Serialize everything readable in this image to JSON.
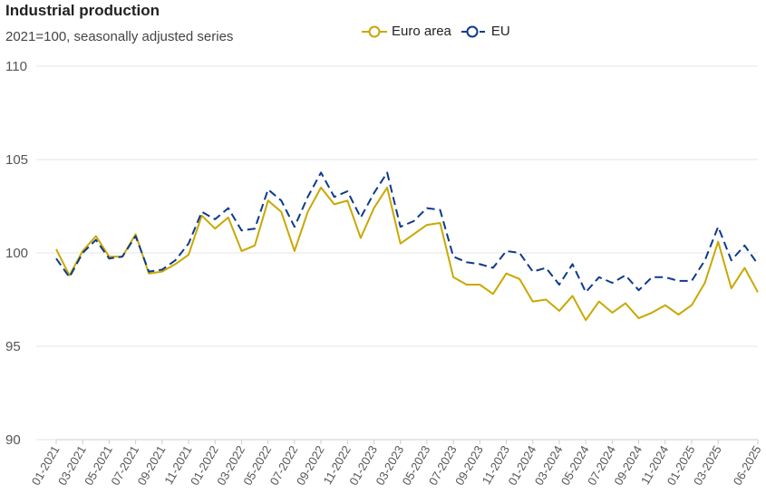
{
  "header": {
    "title": "Industrial production",
    "subtitle": "2021=100, seasonally adjusted series"
  },
  "legend": {
    "items": [
      {
        "label": "Euro area",
        "color": "#c9a800",
        "style": "solid"
      },
      {
        "label": "EU",
        "color": "#0e3a8a",
        "style": "dashed"
      }
    ]
  },
  "chart_data": {
    "type": "line",
    "title": "Industrial production",
    "subtitle": "2021=100, seasonally adjusted series",
    "xlabel": "",
    "ylabel": "",
    "ylim": [
      90,
      110
    ],
    "yticks": [
      90,
      95,
      100,
      105,
      110
    ],
    "grid": true,
    "legend_position": "top",
    "x": [
      "01-2021",
      "02-2021",
      "03-2021",
      "04-2021",
      "05-2021",
      "06-2021",
      "07-2021",
      "08-2021",
      "09-2021",
      "10-2021",
      "11-2021",
      "12-2021",
      "01-2022",
      "02-2022",
      "03-2022",
      "04-2022",
      "05-2022",
      "06-2022",
      "07-2022",
      "08-2022",
      "09-2022",
      "10-2022",
      "11-2022",
      "12-2022",
      "01-2023",
      "02-2023",
      "03-2023",
      "04-2023",
      "05-2023",
      "06-2023",
      "07-2023",
      "08-2023",
      "09-2023",
      "10-2023",
      "11-2023",
      "12-2023",
      "01-2024",
      "02-2024",
      "03-2024",
      "04-2024",
      "05-2024",
      "06-2024",
      "07-2024",
      "08-2024",
      "09-2024",
      "10-2024",
      "11-2024",
      "12-2024",
      "01-2025",
      "02-2025",
      "03-2025",
      "04-2025",
      "05-2025",
      "06-2025"
    ],
    "xtick_labels": [
      "01-2021",
      "03-2021",
      "05-2021",
      "07-2021",
      "09-2021",
      "11-2021",
      "01-2022",
      "03-2022",
      "05-2022",
      "07-2022",
      "09-2022",
      "11-2022",
      "01-2023",
      "03-2023",
      "05-2023",
      "07-2023",
      "09-2023",
      "11-2023",
      "01-2024",
      "03-2024",
      "05-2024",
      "07-2024",
      "09-2024",
      "11-2024",
      "01-2025",
      "03-2025",
      "06-2025"
    ],
    "series": [
      {
        "name": "Euro area",
        "color": "#c9a800",
        "dash": false,
        "values": [
          100.2,
          98.8,
          100.1,
          100.9,
          99.8,
          99.8,
          101.0,
          98.9,
          99.0,
          99.4,
          99.9,
          102.0,
          101.3,
          101.9,
          100.1,
          100.4,
          102.8,
          102.2,
          100.1,
          102.2,
          103.5,
          102.6,
          102.8,
          100.8,
          102.4,
          103.5,
          100.5,
          101.0,
          101.5,
          101.6,
          98.7,
          98.3,
          98.3,
          97.8,
          98.9,
          98.6,
          97.4,
          97.5,
          96.9,
          97.7,
          96.4,
          97.4,
          96.8,
          97.3,
          96.5,
          96.8,
          97.2,
          96.7,
          97.2,
          98.4,
          100.6,
          98.1,
          99.2,
          97.9
        ]
      },
      {
        "name": "EU",
        "color": "#0e3a8a",
        "dash": true,
        "values": [
          99.7,
          98.7,
          100.0,
          100.7,
          99.7,
          99.8,
          100.9,
          99.0,
          99.1,
          99.6,
          100.5,
          102.2,
          101.8,
          102.4,
          101.2,
          101.3,
          103.4,
          102.8,
          101.4,
          103.0,
          104.3,
          103.0,
          103.3,
          101.9,
          103.2,
          104.3,
          101.4,
          101.7,
          102.4,
          102.3,
          99.8,
          99.5,
          99.4,
          99.2,
          100.1,
          100.0,
          99.0,
          99.2,
          98.3,
          99.4,
          97.9,
          98.7,
          98.4,
          98.8,
          98.0,
          98.7,
          98.7,
          98.5,
          98.5,
          99.6,
          101.4,
          99.6,
          100.4,
          99.4
        ]
      }
    ]
  }
}
